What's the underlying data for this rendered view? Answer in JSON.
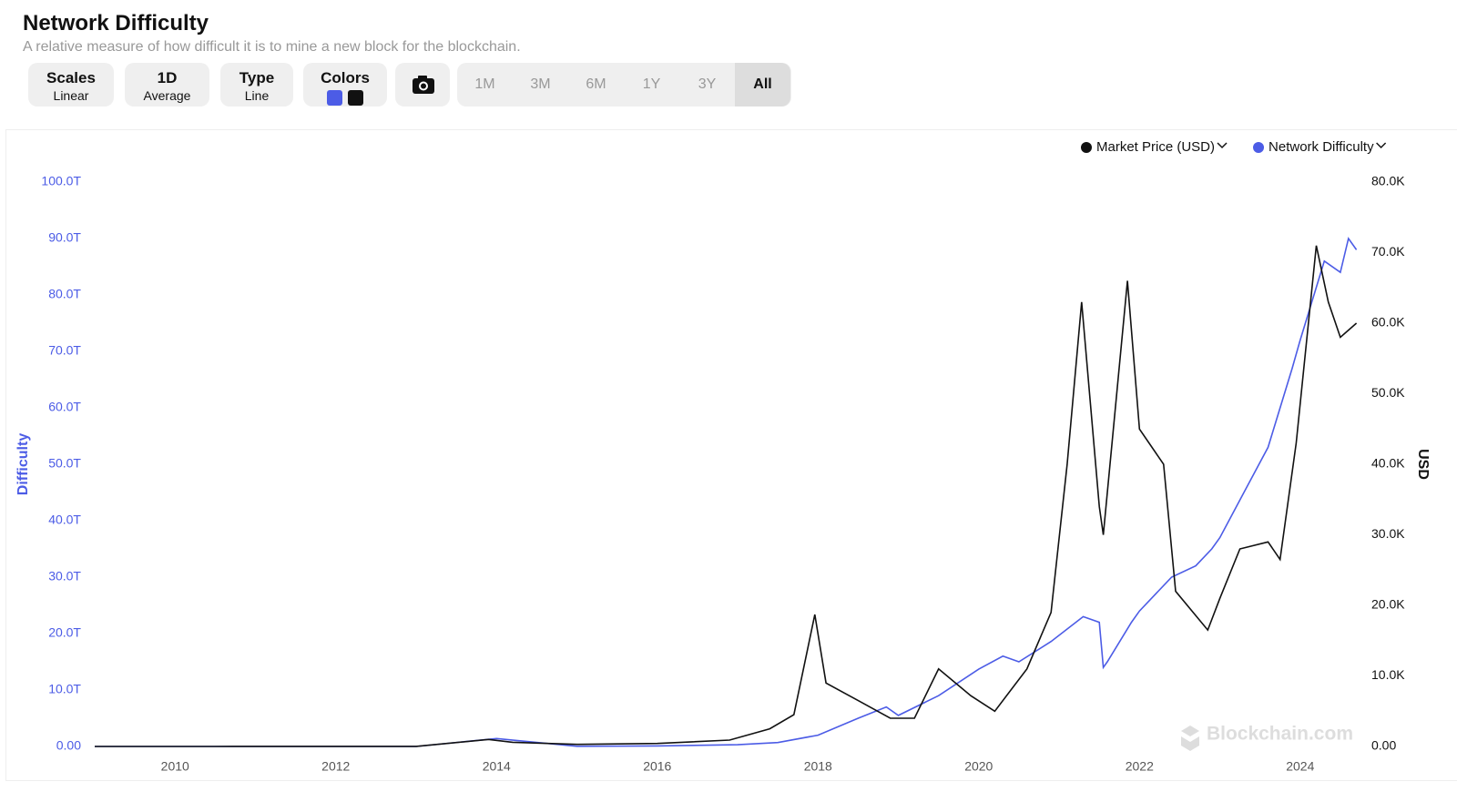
{
  "header": {
    "title": "Network Difficulty",
    "subtitle": "A relative measure of how difficult it is to mine a new block for the blockchain."
  },
  "toolbar": {
    "scales": {
      "label": "Scales",
      "value": "Linear"
    },
    "average": {
      "label": "1D",
      "value": "Average"
    },
    "type": {
      "label": "Type",
      "value": "Line"
    },
    "colors": {
      "label": "Colors"
    },
    "ranges": [
      "1M",
      "3M",
      "6M",
      "1Y",
      "3Y",
      "All"
    ]
  },
  "chart_data": {
    "type": "line",
    "ylabel": "Difficulty",
    "y2label": "USD",
    "watermark": "Blockchain.com",
    "xlim": [
      2009.0,
      2024.75
    ],
    "xticks": [
      2010,
      2012,
      2014,
      2016,
      2018,
      2020,
      2022,
      2024
    ],
    "ylim": [
      0,
      100000000000000
    ],
    "yticks": [
      {
        "value": 0,
        "label": "0.00"
      },
      {
        "value": 10000000000000,
        "label": "10.0T"
      },
      {
        "value": 20000000000000,
        "label": "20.0T"
      },
      {
        "value": 30000000000000,
        "label": "30.0T"
      },
      {
        "value": 40000000000000,
        "label": "40.0T"
      },
      {
        "value": 50000000000000,
        "label": "50.0T"
      },
      {
        "value": 60000000000000,
        "label": "60.0T"
      },
      {
        "value": 70000000000000,
        "label": "70.0T"
      },
      {
        "value": 80000000000000,
        "label": "80.0T"
      },
      {
        "value": 90000000000000,
        "label": "90.0T"
      },
      {
        "value": 100000000000000,
        "label": "100.0T"
      }
    ],
    "y2lim": [
      0,
      80000
    ],
    "y2ticks": [
      {
        "value": 0,
        "label": "0.00"
      },
      {
        "value": 10000,
        "label": "10.0K"
      },
      {
        "value": 20000,
        "label": "20.0K"
      },
      {
        "value": 30000,
        "label": "30.0K"
      },
      {
        "value": 40000,
        "label": "40.0K"
      },
      {
        "value": 50000,
        "label": "50.0K"
      },
      {
        "value": 60000,
        "label": "60.0K"
      },
      {
        "value": 70000,
        "label": "70.0K"
      },
      {
        "value": 80000,
        "label": "80.0K"
      }
    ],
    "legend": "top-right",
    "series": [
      {
        "name": "Market Price (USD)",
        "color": "#111111",
        "axis": "y2",
        "x": [
          2009.0,
          2010.5,
          2011.5,
          2013.0,
          2013.9,
          2014.2,
          2015.0,
          2016.0,
          2016.9,
          2017.4,
          2017.7,
          2017.96,
          2018.1,
          2018.5,
          2018.9,
          2019.2,
          2019.5,
          2019.9,
          2020.2,
          2020.6,
          2020.9,
          2021.1,
          2021.28,
          2021.5,
          2021.55,
          2021.85,
          2022.0,
          2022.3,
          2022.45,
          2022.85,
          2023.0,
          2023.25,
          2023.6,
          2023.75,
          2023.95,
          2024.2,
          2024.35,
          2024.5,
          2024.7
        ],
        "values": [
          0,
          0,
          15,
          13,
          1000,
          600,
          300,
          430,
          900,
          2500,
          4500,
          18700,
          9000,
          6500,
          4000,
          4000,
          11000,
          7200,
          5000,
          11000,
          19000,
          40000,
          63000,
          34000,
          30000,
          66000,
          45000,
          40000,
          22000,
          16500,
          21000,
          28000,
          29000,
          26500,
          43000,
          71000,
          63000,
          58000,
          60000
        ]
      },
      {
        "name": "Network Difficulty",
        "color": "#4c5ce6",
        "axis": "y",
        "x": [
          2009.0,
          2011.0,
          2013.0,
          2014.0,
          2015.0,
          2016.0,
          2017.0,
          2017.5,
          2018.0,
          2018.5,
          2018.85,
          2019.0,
          2019.5,
          2020.0,
          2020.3,
          2020.5,
          2020.9,
          2021.3,
          2021.5,
          2021.55,
          2021.6,
          2021.9,
          2022.0,
          2022.4,
          2022.7,
          2022.9,
          2023.0,
          2023.3,
          2023.6,
          2023.9,
          2024.0,
          2024.3,
          2024.5,
          2024.6,
          2024.7
        ],
        "values": [
          0,
          0,
          3000000000,
          1400000000000,
          40000000000,
          100000000000,
          300000000000,
          700000000000,
          2000000000000,
          5000000000000,
          7000000000000,
          5500000000000,
          9000000000000,
          13700000000000,
          16000000000000,
          15000000000000,
          18600000000000,
          23000000000000,
          22000000000000,
          14000000000000,
          15000000000000,
          22000000000000,
          24000000000000,
          30000000000000,
          32000000000000,
          35000000000000,
          37000000000000,
          45000000000000,
          53000000000000,
          67000000000000,
          72000000000000,
          86000000000000,
          84000000000000,
          90000000000000,
          88000000000000
        ]
      }
    ]
  }
}
